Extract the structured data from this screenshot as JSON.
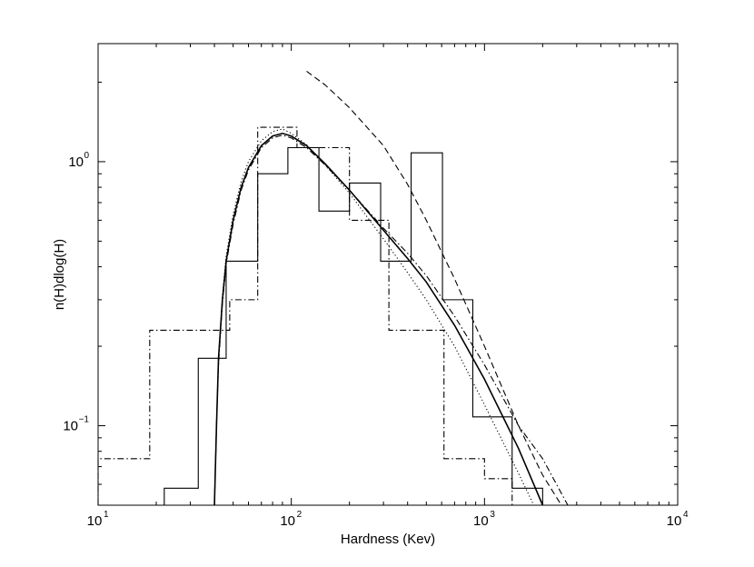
{
  "chart_data": {
    "type": "line",
    "title": "",
    "xlabel": "Hardness (Kev)",
    "ylabel": "n(H)dlog(H)",
    "x_scale": "log",
    "y_scale": "log",
    "xlim": [
      10,
      10000
    ],
    "ylim": [
      0.05,
      2.8
    ],
    "grid": false,
    "legend": "none",
    "x_ticks": [
      {
        "value": 10,
        "base": "10",
        "exp": "1"
      },
      {
        "value": 100,
        "base": "10",
        "exp": "2"
      },
      {
        "value": 1000,
        "base": "10",
        "exp": "3"
      },
      {
        "value": 10000,
        "base": "10",
        "exp": "4"
      }
    ],
    "y_ticks": [
      {
        "value": 0.1,
        "base": "10",
        "exp": "−1"
      },
      {
        "value": 1,
        "base": "10",
        "exp": "0"
      }
    ],
    "histograms": [
      {
        "style": "solid",
        "edges": [
          22,
          33,
          46,
          67,
          96,
          139,
          200,
          290,
          417,
          606,
          870,
          1390,
          2000
        ],
        "values": [
          0.058,
          0.18,
          0.42,
          0.9,
          1.13,
          0.65,
          0.83,
          0.42,
          1.08,
          0.3,
          0.108,
          0.058
        ]
      },
      {
        "style": "dashdot",
        "edges": [
          10,
          18.5,
          33,
          48,
          67,
          107,
          200,
          320,
          617,
          1000,
          1390
        ],
        "values": [
          0.075,
          0.23,
          0.23,
          0.3,
          1.35,
          1.13,
          0.6,
          0.23,
          0.075,
          0.063
        ]
      }
    ],
    "curves": [
      {
        "style": "solid",
        "x": [
          40,
          41,
          42,
          44,
          46,
          50,
          55,
          60,
          70,
          80,
          90,
          100,
          120,
          150,
          200,
          300,
          400,
          500,
          700,
          1000,
          1500,
          2000
        ],
        "y": [
          0.05,
          0.1,
          0.18,
          0.3,
          0.42,
          0.6,
          0.8,
          0.95,
          1.15,
          1.25,
          1.28,
          1.25,
          1.15,
          0.98,
          0.78,
          0.55,
          0.43,
          0.35,
          0.24,
          0.15,
          0.082,
          0.05
        ]
      },
      {
        "style": "dotted",
        "x": [
          40,
          41,
          42,
          44,
          46,
          50,
          55,
          60,
          70,
          80,
          90,
          100,
          120,
          150,
          200,
          300,
          400,
          500,
          700,
          1000,
          1500,
          1800
        ],
        "y": [
          0.05,
          0.1,
          0.18,
          0.31,
          0.44,
          0.63,
          0.84,
          1.0,
          1.2,
          1.3,
          1.33,
          1.28,
          1.16,
          0.97,
          0.76,
          0.51,
          0.38,
          0.3,
          0.2,
          0.12,
          0.066,
          0.05
        ]
      },
      {
        "style": "dashdot",
        "x": [
          40,
          41,
          42,
          44,
          46,
          50,
          55,
          60,
          70,
          80,
          90,
          100,
          120,
          150,
          200,
          300,
          400,
          500,
          700,
          1000,
          1500,
          2000,
          2700
        ],
        "y": [
          0.05,
          0.1,
          0.17,
          0.29,
          0.41,
          0.58,
          0.78,
          0.93,
          1.13,
          1.23,
          1.26,
          1.23,
          1.13,
          0.97,
          0.78,
          0.56,
          0.45,
          0.37,
          0.26,
          0.17,
          0.1,
          0.075,
          0.05
        ]
      },
      {
        "style": "dashed",
        "x": [
          120,
          150,
          200,
          300,
          400,
          500,
          700,
          1000,
          1500,
          2000,
          2500
        ],
        "y": [
          2.2,
          1.95,
          1.6,
          1.15,
          0.82,
          0.6,
          0.36,
          0.2,
          0.1,
          0.065,
          0.05
        ]
      }
    ]
  }
}
